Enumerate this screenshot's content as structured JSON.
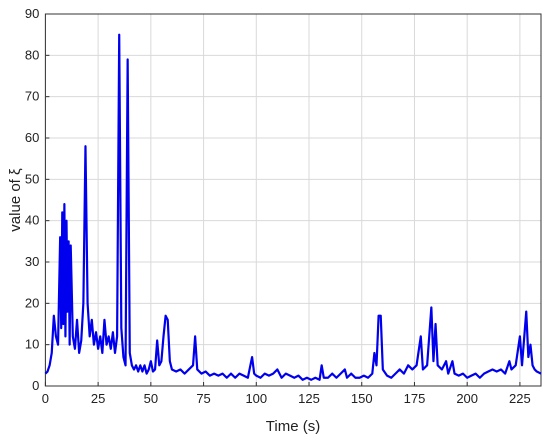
{
  "chart_data": {
    "type": "line",
    "xlabel": "Time (s)",
    "ylabel": "value of  ξ",
    "xlim": [
      0,
      235
    ],
    "ylim": [
      0,
      90
    ],
    "xticks": [
      0,
      25,
      50,
      75,
      100,
      125,
      150,
      175,
      200,
      225
    ],
    "yticks": [
      0,
      10,
      20,
      30,
      40,
      50,
      60,
      70,
      80,
      90
    ],
    "grid": true,
    "x": [
      0,
      1,
      2,
      3,
      4,
      5,
      6,
      7,
      7.5,
      8,
      8.5,
      9,
      9.5,
      10,
      10.5,
      11,
      11.5,
      12,
      13,
      14,
      15,
      16,
      17,
      18,
      19,
      20,
      21,
      22,
      23,
      24,
      25,
      26,
      27,
      28,
      29,
      30,
      31,
      32,
      33,
      34,
      35,
      36,
      37,
      38,
      39,
      40,
      41,
      42,
      43,
      44,
      45,
      46,
      47,
      48,
      49,
      50,
      51,
      52,
      53,
      54,
      55,
      56,
      57,
      58,
      59,
      60,
      62,
      64,
      66,
      68,
      70,
      71,
      72,
      74,
      76,
      78,
      80,
      82,
      84,
      86,
      88,
      90,
      92,
      94,
      96,
      98,
      99,
      100,
      102,
      104,
      106,
      108,
      110,
      112,
      114,
      116,
      118,
      120,
      122,
      124,
      126,
      128,
      130,
      131,
      132,
      134,
      136,
      138,
      140,
      142,
      143,
      145,
      147,
      149,
      151,
      153,
      155,
      156,
      157,
      158,
      159,
      160,
      162,
      164,
      166,
      168,
      170,
      172,
      174,
      176,
      178,
      179,
      181,
      183,
      184,
      185,
      186,
      188,
      190,
      191,
      193,
      194,
      196,
      198,
      200,
      202,
      204,
      206,
      208,
      210,
      212,
      214,
      216,
      218,
      220,
      221,
      223,
      225,
      226,
      228,
      229,
      230,
      231,
      232,
      233,
      235
    ],
    "series": [
      {
        "color": "#0000ee",
        "values": [
          3,
          3.5,
          5,
          8,
          17,
          12,
          10,
          36,
          14,
          42,
          15,
          44,
          12,
          40,
          18,
          35,
          10,
          34,
          12,
          9,
          16,
          8,
          11,
          20,
          58,
          20,
          12,
          16,
          10,
          13,
          9,
          12,
          8,
          16,
          10,
          12,
          9,
          13,
          8,
          12,
          85,
          14,
          7,
          5,
          79,
          8,
          5,
          4,
          5,
          3.5,
          5,
          3.5,
          5,
          3,
          4,
          6,
          3.5,
          4,
          11,
          5,
          6,
          12,
          17,
          16,
          6,
          4,
          3.5,
          4,
          3,
          4,
          5,
          12,
          4,
          3,
          3.5,
          2.5,
          3,
          2.5,
          3,
          2,
          3,
          2,
          3,
          2.5,
          2,
          7,
          3,
          2.5,
          2,
          3,
          2.5,
          3,
          4,
          2,
          3,
          2.5,
          2,
          2.5,
          1.5,
          2,
          1.5,
          2,
          1.5,
          5,
          2,
          2,
          3,
          2,
          3,
          4,
          2,
          3,
          2,
          2,
          2.5,
          2,
          3,
          8,
          5,
          17,
          17,
          4,
          2.5,
          2,
          3,
          4,
          3,
          5,
          4,
          5,
          12,
          4,
          5,
          19,
          6,
          15,
          5,
          4,
          6,
          3,
          6,
          3,
          2.5,
          3,
          2,
          2.5,
          3,
          2,
          3,
          3.5,
          4,
          3.5,
          4,
          3,
          6,
          4,
          5,
          12,
          5,
          18,
          7,
          10,
          5,
          4,
          3.5,
          3
        ]
      }
    ]
  }
}
